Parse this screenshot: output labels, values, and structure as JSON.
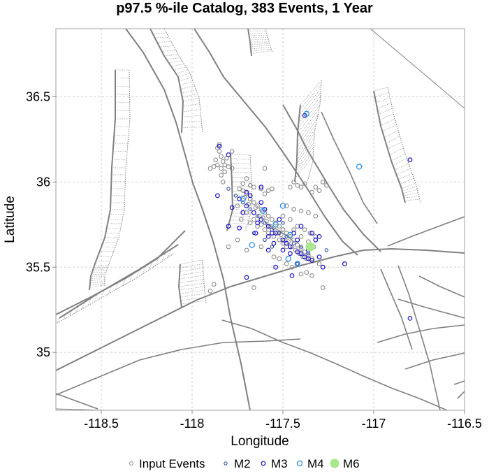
{
  "chart_data": {
    "type": "scatter",
    "title": "p97.5 %-ile Catalog, 383 Events, 1 Year",
    "xlabel": "Longitude",
    "ylabel": "Latitude",
    "xlim": [
      -118.75,
      -116.5
    ],
    "ylim": [
      34.66,
      36.9
    ],
    "x_ticks": [
      -118.5,
      -118,
      -117.5,
      -117,
      -116.5
    ],
    "x_tick_labels": [
      "-118.5",
      "-118",
      "-117.5",
      "-117",
      "-116.5"
    ],
    "y_ticks": [
      35,
      35.5,
      36,
      36.5
    ],
    "y_tick_labels": [
      "35",
      "35.5",
      "36",
      "36.5"
    ],
    "grid": true,
    "legend_position": "bottom",
    "colors": {
      "input": "#8c8c8c",
      "m2": "#1f3f9e",
      "m3": "#1a10c8",
      "m4": "#2e90e6",
      "m6": "#a6e88a",
      "fault": "#808080",
      "grid": "#d0d0d0"
    },
    "series": [
      {
        "name": "Input Events",
        "points": [
          [
            -117.72,
            35.95
          ],
          [
            -117.7,
            35.93
          ],
          [
            -117.68,
            35.9
          ],
          [
            -117.66,
            35.88
          ],
          [
            -117.64,
            35.86
          ],
          [
            -117.62,
            35.84
          ],
          [
            -117.6,
            35.82
          ],
          [
            -117.58,
            35.8
          ],
          [
            -117.56,
            35.78
          ],
          [
            -117.54,
            35.76
          ],
          [
            -117.52,
            35.74
          ],
          [
            -117.5,
            35.72
          ],
          [
            -117.48,
            35.7
          ],
          [
            -117.46,
            35.68
          ],
          [
            -117.44,
            35.66
          ],
          [
            -117.42,
            35.63
          ],
          [
            -117.4,
            35.61
          ],
          [
            -117.38,
            35.59
          ],
          [
            -117.36,
            35.57
          ],
          [
            -117.34,
            35.55
          ],
          [
            -117.71,
            35.91
          ],
          [
            -117.69,
            35.87
          ],
          [
            -117.65,
            35.85
          ],
          [
            -117.63,
            35.8
          ],
          [
            -117.61,
            35.79
          ],
          [
            -117.59,
            35.77
          ],
          [
            -117.57,
            35.74
          ],
          [
            -117.55,
            35.73
          ],
          [
            -117.53,
            35.7
          ],
          [
            -117.51,
            35.69
          ],
          [
            -117.49,
            35.66
          ],
          [
            -117.47,
            35.65
          ],
          [
            -117.45,
            35.62
          ],
          [
            -117.43,
            35.6
          ],
          [
            -117.41,
            35.58
          ],
          [
            -117.39,
            35.56
          ],
          [
            -117.37,
            35.55
          ],
          [
            -117.6,
            35.72
          ],
          [
            -117.58,
            35.7
          ],
          [
            -117.62,
            35.75
          ],
          [
            -117.55,
            35.68
          ],
          [
            -117.52,
            35.66
          ],
          [
            -117.5,
            35.64
          ],
          [
            -117.48,
            35.62
          ],
          [
            -117.66,
            35.78
          ],
          [
            -117.64,
            35.74
          ],
          [
            -117.7,
            35.82
          ],
          [
            -117.68,
            35.76
          ],
          [
            -117.75,
            35.86
          ],
          [
            -117.73,
            35.78
          ],
          [
            -117.86,
            36.2
          ],
          [
            -117.85,
            36.18
          ],
          [
            -117.84,
            36.15
          ],
          [
            -117.83,
            36.12
          ],
          [
            -117.82,
            36.1
          ],
          [
            -117.86,
            36.1
          ],
          [
            -117.88,
            36.09
          ],
          [
            -117.8,
            36.09
          ],
          [
            -117.84,
            36.08
          ],
          [
            -117.82,
            36.06
          ],
          [
            -117.87,
            36.13
          ],
          [
            -117.81,
            36.14
          ],
          [
            -117.9,
            36.08
          ],
          [
            -117.78,
            36.08
          ],
          [
            -117.84,
            36.04
          ],
          [
            -117.85,
            36.22
          ],
          [
            -117.83,
            36.0
          ],
          [
            -117.7,
            36.02
          ],
          [
            -117.68,
            35.98
          ],
          [
            -117.72,
            35.99
          ],
          [
            -117.66,
            35.97
          ],
          [
            -117.74,
            35.96
          ],
          [
            -117.62,
            35.96
          ],
          [
            -117.58,
            35.95
          ],
          [
            -117.56,
            35.96
          ],
          [
            -117.6,
            35.93
          ],
          [
            -117.44,
            36.0
          ],
          [
            -117.42,
            35.98
          ],
          [
            -117.4,
            35.97
          ],
          [
            -117.38,
            35.99
          ],
          [
            -117.46,
            35.97
          ],
          [
            -117.32,
            35.97
          ],
          [
            -117.3,
            35.95
          ],
          [
            -117.28,
            36.0
          ],
          [
            -117.26,
            35.98
          ],
          [
            -117.34,
            35.94
          ],
          [
            -117.48,
            35.86
          ],
          [
            -117.44,
            35.84
          ],
          [
            -117.4,
            35.83
          ],
          [
            -117.36,
            35.82
          ],
          [
            -117.32,
            35.8
          ],
          [
            -117.42,
            35.74
          ],
          [
            -117.38,
            35.72
          ],
          [
            -117.35,
            35.7
          ],
          [
            -117.36,
            35.65
          ],
          [
            -117.33,
            35.62
          ],
          [
            -117.3,
            35.52
          ],
          [
            -117.34,
            35.45
          ],
          [
            -117.37,
            35.47
          ],
          [
            -117.28,
            35.38
          ],
          [
            -117.48,
            35.52
          ],
          [
            -117.52,
            35.55
          ],
          [
            -117.62,
            35.62
          ],
          [
            -117.7,
            35.6
          ],
          [
            -117.75,
            35.66
          ],
          [
            -117.8,
            35.62
          ],
          [
            -117.88,
            35.4
          ],
          [
            -117.9,
            35.36
          ],
          [
            -117.66,
            35.38
          ],
          [
            -117.78,
            36.18
          ],
          [
            -117.6,
            36.08
          ],
          [
            -117.55,
            35.56
          ],
          [
            -117.45,
            35.5
          ],
          [
            -117.4,
            35.46
          ],
          [
            -117.5,
            35.8
          ],
          [
            -117.46,
            35.78
          ],
          [
            -117.44,
            35.72
          ],
          [
            -117.4,
            35.68
          ],
          [
            -117.32,
            35.68
          ]
        ]
      },
      {
        "name": "M2",
        "points": [
          [
            -117.76,
            35.92
          ],
          [
            -117.72,
            35.88
          ],
          [
            -117.68,
            35.84
          ],
          [
            -117.64,
            35.8
          ],
          [
            -117.6,
            35.76
          ],
          [
            -117.56,
            35.72
          ],
          [
            -117.52,
            35.7
          ],
          [
            -117.48,
            35.68
          ],
          [
            -117.44,
            35.64
          ],
          [
            -117.4,
            35.62
          ],
          [
            -117.36,
            35.58
          ],
          [
            -117.6,
            35.66
          ],
          [
            -117.66,
            35.7
          ],
          [
            -117.56,
            35.62
          ],
          [
            -117.5,
            35.76
          ],
          [
            -117.8,
            35.96
          ],
          [
            -117.42,
            35.52
          ],
          [
            -117.26,
            35.6
          ]
        ]
      },
      {
        "name": "M3",
        "points": [
          [
            -117.74,
            35.9
          ],
          [
            -117.7,
            35.86
          ],
          [
            -117.66,
            35.82
          ],
          [
            -117.62,
            35.78
          ],
          [
            -117.58,
            35.74
          ],
          [
            -117.54,
            35.7
          ],
          [
            -117.5,
            35.66
          ],
          [
            -117.46,
            35.62
          ],
          [
            -117.42,
            35.59
          ],
          [
            -117.38,
            35.56
          ],
          [
            -117.34,
            35.54
          ],
          [
            -117.72,
            35.82
          ],
          [
            -117.64,
            35.76
          ],
          [
            -117.56,
            35.7
          ],
          [
            -117.48,
            35.64
          ],
          [
            -117.4,
            35.58
          ],
          [
            -117.68,
            35.92
          ],
          [
            -117.6,
            35.84
          ],
          [
            -117.52,
            35.78
          ],
          [
            -117.44,
            35.7
          ],
          [
            -117.7,
            35.94
          ],
          [
            -117.62,
            35.88
          ],
          [
            -117.58,
            35.68
          ],
          [
            -117.46,
            35.58
          ],
          [
            -117.36,
            35.6
          ],
          [
            -117.3,
            35.56
          ],
          [
            -117.28,
            35.5
          ],
          [
            -117.45,
            35.45
          ],
          [
            -117.65,
            35.7
          ],
          [
            -117.78,
            35.85
          ],
          [
            -117.74,
            35.73
          ],
          [
            -117.8,
            35.74
          ],
          [
            -117.86,
            35.92
          ],
          [
            -117.58,
            35.6
          ],
          [
            -117.5,
            35.6
          ],
          [
            -117.42,
            35.66
          ],
          [
            -117.4,
            35.74
          ],
          [
            -117.34,
            35.7
          ],
          [
            -117.32,
            35.66
          ],
          [
            -117.3,
            35.68
          ],
          [
            -117.85,
            36.21
          ],
          [
            -117.8,
            36.16
          ],
          [
            -117.7,
            35.44
          ],
          [
            -117.54,
            35.5
          ],
          [
            -117.16,
            35.52
          ],
          [
            -116.8,
            36.13
          ],
          [
            -116.8,
            35.2
          ],
          [
            -117.38,
            36.39
          ],
          [
            -117.36,
            35.55
          ],
          [
            -117.62,
            35.97
          ],
          [
            -117.55,
            35.64
          ]
        ]
      },
      {
        "name": "M4",
        "points": [
          [
            -117.37,
            36.4
          ],
          [
            -117.61,
            35.83
          ],
          [
            -117.54,
            35.75
          ],
          [
            -117.47,
            35.55
          ],
          [
            -117.72,
            35.9
          ],
          [
            -117.46,
            35.69
          ],
          [
            -117.5,
            35.86
          ],
          [
            -117.08,
            36.09
          ],
          [
            -117.67,
            35.63
          ],
          [
            -117.42,
            35.52
          ]
        ]
      },
      {
        "name": "M6",
        "points": [
          [
            -117.35,
            35.62
          ]
        ]
      }
    ]
  }
}
